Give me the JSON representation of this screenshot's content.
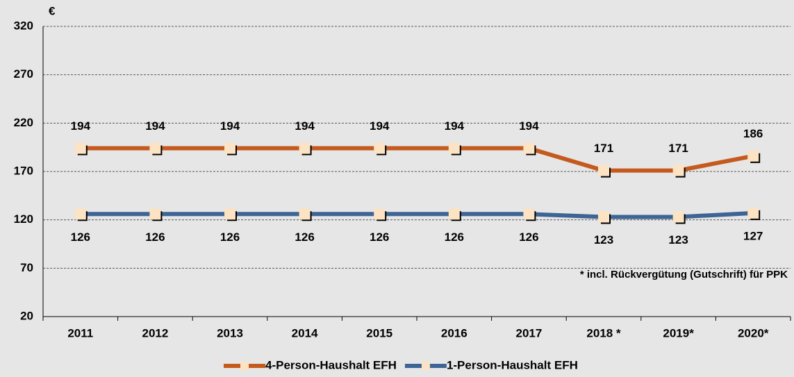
{
  "chart_data": {
    "type": "line",
    "y_label": "€",
    "annotation": "* incl. Rückvergütung (Gutschrift) für PPK",
    "categories": [
      "2011",
      "2012",
      "2013",
      "2014",
      "2015",
      "2016",
      "2017",
      "2018 *",
      "2019*",
      "2020*"
    ],
    "series": [
      {
        "name": "4-Person-Haushalt EFH",
        "color": "#c55a1f",
        "values": [
          194,
          194,
          194,
          194,
          194,
          194,
          194,
          171,
          171,
          186
        ]
      },
      {
        "name": "1-Person-Haushalt EFH",
        "color": "#3e6495",
        "values": [
          126,
          126,
          126,
          126,
          126,
          126,
          126,
          123,
          123,
          127
        ]
      }
    ],
    "ylim": [
      20,
      320
    ],
    "yticks": [
      20,
      70,
      120,
      170,
      220,
      270,
      320
    ],
    "grid": true
  }
}
